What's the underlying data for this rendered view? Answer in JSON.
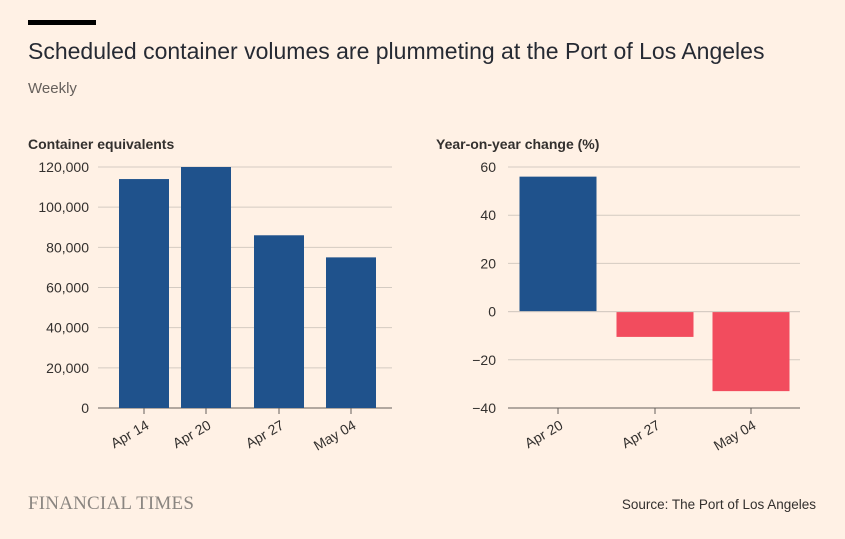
{
  "header": {
    "title": "Scheduled container volumes are plummeting at the Port of Los Angeles",
    "subtitle": "Weekly"
  },
  "footer": {
    "logo": "FINANCIAL TIMES",
    "source": "Source: The Port of Los Angeles"
  },
  "colors": {
    "background": "#fff1e5",
    "positive": "#1f528c",
    "negative": "#f24c5e",
    "gridline": "#d4cbc2",
    "axis": "#66605c",
    "text": "#33302e"
  },
  "chart_data": [
    {
      "type": "bar",
      "title": "Container equivalents",
      "categories": [
        "Apr 14",
        "Apr 20",
        "Apr 27",
        "May 04"
      ],
      "values": [
        114000,
        120000,
        86000,
        75000
      ],
      "ylim": [
        0,
        120000
      ],
      "yticks": [
        0,
        20000,
        40000,
        60000,
        80000,
        100000,
        120000
      ],
      "ytick_labels": [
        "0",
        "20,000",
        "40,000",
        "60,000",
        "80,000",
        "100,000",
        "120,000"
      ],
      "grid": true
    },
    {
      "type": "bar",
      "title": "Year-on-year change (%)",
      "categories": [
        "Apr 20",
        "Apr 27",
        "May 04"
      ],
      "values": [
        56,
        -10.5,
        -33
      ],
      "ylim": [
        -40,
        60
      ],
      "yticks": [
        -40,
        -20,
        0,
        20,
        40,
        60
      ],
      "ytick_labels": [
        "−40",
        "−20",
        "0",
        "20",
        "40",
        "60"
      ],
      "grid": true
    }
  ]
}
